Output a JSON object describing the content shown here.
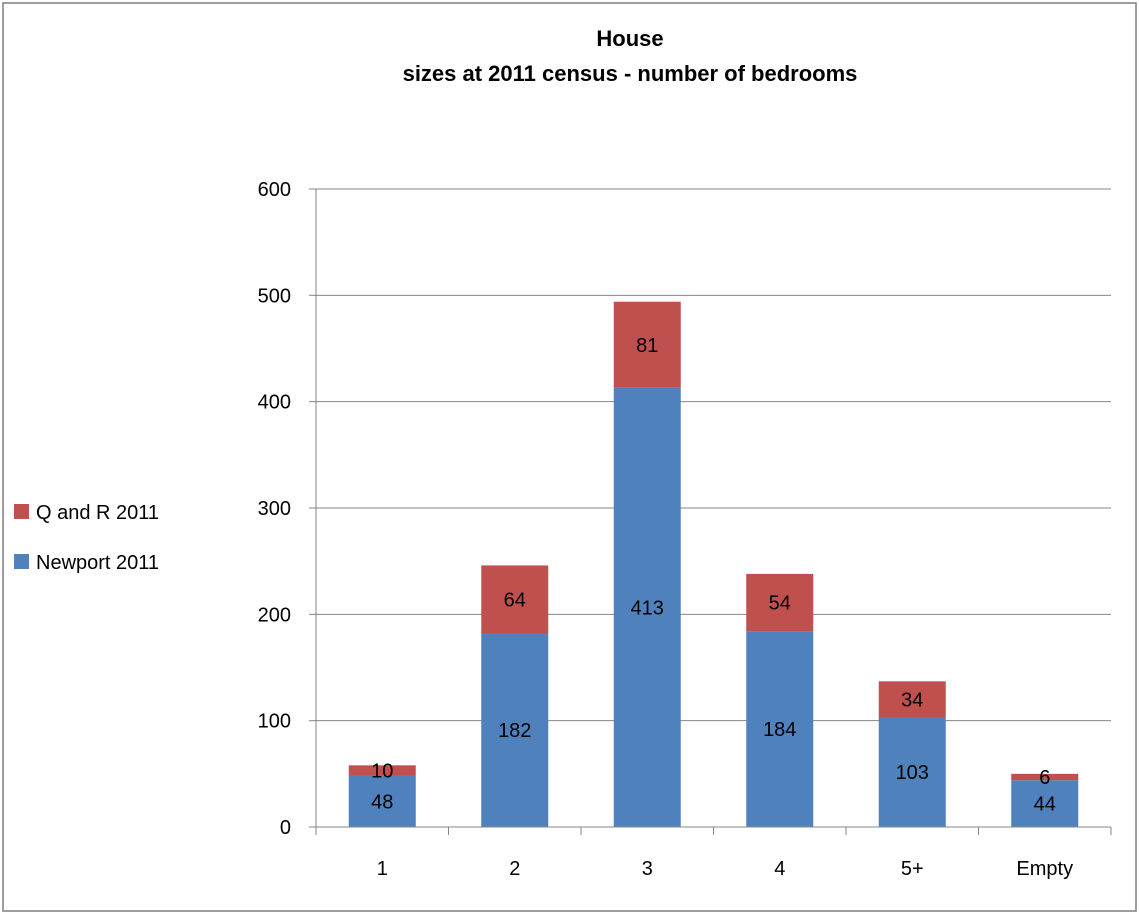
{
  "chart_data": {
    "type": "bar",
    "stacked": true,
    "title": [
      "House",
      "sizes at 2011 census - number of bedrooms"
    ],
    "xlabel": "",
    "ylabel": "",
    "categories": [
      "1",
      "2",
      "3",
      "4",
      "5+",
      "Empty"
    ],
    "series": [
      {
        "name": "Newport 2011",
        "color": "#4F81BD",
        "values": [
          48,
          182,
          413,
          184,
          103,
          44
        ]
      },
      {
        "name": "Q and R 2011",
        "color": "#C0504D",
        "values": [
          10,
          64,
          81,
          54,
          34,
          6
        ]
      }
    ],
    "ylim": [
      0,
      600
    ],
    "yticks": [
      "0",
      "100",
      "200",
      "300",
      "400",
      "500",
      "600"
    ],
    "grid": true,
    "legend_position": "left"
  }
}
